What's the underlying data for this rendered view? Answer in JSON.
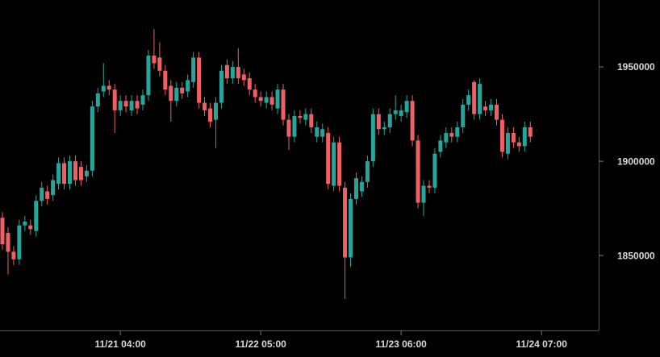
{
  "chart_data": {
    "type": "candlestick",
    "x": [
      0,
      1,
      2,
      3,
      4,
      5,
      6,
      7,
      8,
      9,
      10,
      11,
      12,
      13,
      14,
      15,
      16,
      17,
      18,
      19,
      20,
      21,
      22,
      23,
      24,
      25,
      26,
      27,
      28,
      29,
      30,
      31,
      32,
      33,
      34,
      35,
      36,
      37,
      38,
      39,
      40,
      41,
      42,
      43,
      44,
      45,
      46,
      47,
      48,
      49,
      50,
      51,
      52,
      53,
      54,
      55,
      56,
      57,
      58,
      59,
      60,
      61,
      62,
      63,
      64,
      65,
      66,
      67,
      68,
      69,
      70,
      71,
      72,
      73,
      74,
      75,
      76,
      77,
      78,
      79,
      80,
      81,
      82,
      83,
      84,
      85,
      86,
      87,
      88,
      89,
      90,
      91,
      92,
      93,
      94
    ],
    "open": [
      1870000,
      1862000,
      1852000,
      1848000,
      1866000,
      1866000,
      1863000,
      1879000,
      1884000,
      1882000,
      1888000,
      1899000,
      1888000,
      1900000,
      1897000,
      1892000,
      1895000,
      1929000,
      1937000,
      1940000,
      1938000,
      1927000,
      1932000,
      1927000,
      1932000,
      1930000,
      1935000,
      1956000,
      1955000,
      1948000,
      1940000,
      1932000,
      1939000,
      1937000,
      1942000,
      1955000,
      1931000,
      1928000,
      1922000,
      1931000,
      1951000,
      1944000,
      1950000,
      1946000,
      1944000,
      1938000,
      1934000,
      1931000,
      1934000,
      1928000,
      1938000,
      1922000,
      1913000,
      1924000,
      1922000,
      1925000,
      1913000,
      1913000,
      1915000,
      1887000,
      1910000,
      1886000,
      1849000,
      1880000,
      1884000,
      1889000,
      1900000,
      1925000,
      1917000,
      1918000,
      1925000,
      1924000,
      1926000,
      1932000,
      1911000,
      1878000,
      1887000,
      1886000,
      1905000,
      1910000,
      1915000,
      1913000,
      1918000,
      1930000,
      1942000,
      1925000,
      1929000,
      1927000,
      1930000,
      1922000,
      1904000,
      1915000,
      1910000,
      1908000,
      1918000
    ],
    "high": [
      1873000,
      1865000,
      1855000,
      1869000,
      1871000,
      1869000,
      1882000,
      1889000,
      1887000,
      1893000,
      1902000,
      1902000,
      1903000,
      1903000,
      1900000,
      1898000,
      1932000,
      1939000,
      1952000,
      1943000,
      1941000,
      1935000,
      1935000,
      1935000,
      1935000,
      1938000,
      1959000,
      1970000,
      1963000,
      1951000,
      1943000,
      1942000,
      1942000,
      1946000,
      1958000,
      1958000,
      1934000,
      1931000,
      1934000,
      1951000,
      1954000,
      1953000,
      1960000,
      1949000,
      1947000,
      1941000,
      1937000,
      1937000,
      1937000,
      1941000,
      1941000,
      1925000,
      1927000,
      1927000,
      1928000,
      1928000,
      1921000,
      1920000,
      1918000,
      1913000,
      1913000,
      1889000,
      1883000,
      1894000,
      1892000,
      1903000,
      1928000,
      1928000,
      1921000,
      1928000,
      1935000,
      1930000,
      1935000,
      1935000,
      1914000,
      1890000,
      1890000,
      1907000,
      1914000,
      1918000,
      1918000,
      1921000,
      1933000,
      1938000,
      1943000,
      1944000,
      1932000,
      1933000,
      1933000,
      1925000,
      1918000,
      1918000,
      1913000,
      1921000,
      1921000
    ],
    "low": [
      1853000,
      1840000,
      1845000,
      1845000,
      1863000,
      1861000,
      1860000,
      1876000,
      1877000,
      1879000,
      1885000,
      1885000,
      1885000,
      1887000,
      1887000,
      1889000,
      1892000,
      1926000,
      1934000,
      1935000,
      1915000,
      1924000,
      1926000,
      1924000,
      1925000,
      1927000,
      1932000,
      1949000,
      1945000,
      1935000,
      1921000,
      1929000,
      1933000,
      1934000,
      1939000,
      1928000,
      1924000,
      1918000,
      1907000,
      1928000,
      1941000,
      1941000,
      1941000,
      1940000,
      1935000,
      1931000,
      1929000,
      1928000,
      1927000,
      1925000,
      1919000,
      1906000,
      1910000,
      1920000,
      1919000,
      1915000,
      1910000,
      1910000,
      1885000,
      1884000,
      1884000,
      1827000,
      1844000,
      1877000,
      1881000,
      1886000,
      1897000,
      1914000,
      1914000,
      1915000,
      1922000,
      1921000,
      1923000,
      1908000,
      1875000,
      1871000,
      1883000,
      1883000,
      1902000,
      1907000,
      1910000,
      1910000,
      1915000,
      1927000,
      1922000,
      1922000,
      1924000,
      1924000,
      1919000,
      1902000,
      1901000,
      1907000,
      1905000,
      1905000,
      1910000
    ],
    "close": [
      1856000,
      1852000,
      1848000,
      1866000,
      1868000,
      1864000,
      1879000,
      1886000,
      1880000,
      1890000,
      1899000,
      1888000,
      1900000,
      1890000,
      1890000,
      1895000,
      1929000,
      1936000,
      1940000,
      1938000,
      1927000,
      1932000,
      1929000,
      1932000,
      1928000,
      1935000,
      1956000,
      1952000,
      1948000,
      1938000,
      1932000,
      1939000,
      1936000,
      1943000,
      1955000,
      1931000,
      1927000,
      1921000,
      1931000,
      1948000,
      1944000,
      1950000,
      1944000,
      1943000,
      1938000,
      1934000,
      1932000,
      1934000,
      1930000,
      1938000,
      1922000,
      1913000,
      1924000,
      1923000,
      1925000,
      1918000,
      1918000,
      1917000,
      1888000,
      1910000,
      1887000,
      1849000,
      1880000,
      1891000,
      1889000,
      1900000,
      1925000,
      1917000,
      1918000,
      1925000,
      1927000,
      1927000,
      1932000,
      1911000,
      1878000,
      1887000,
      1886000,
      1904000,
      1911000,
      1915000,
      1913000,
      1918000,
      1930000,
      1935000,
      1925000,
      1941000,
      1927000,
      1930000,
      1922000,
      1905000,
      1915000,
      1910000,
      1908000,
      1918000,
      1913000
    ],
    "up_color": "#26a69a",
    "down_color": "#ef5f63",
    "xlim": [
      -0.43,
      105.17
    ],
    "xticks": [
      {
        "value": 21,
        "label": "11/21 04:00"
      },
      {
        "value": 46,
        "label": "11/22 05:00"
      },
      {
        "value": 71,
        "label": "11/23 06:00"
      },
      {
        "value": 96,
        "label": "11/24 07:00"
      }
    ],
    "ylim": [
      1810300,
      1985500
    ],
    "yticks": [
      1850000,
      1900000,
      1950000
    ]
  }
}
